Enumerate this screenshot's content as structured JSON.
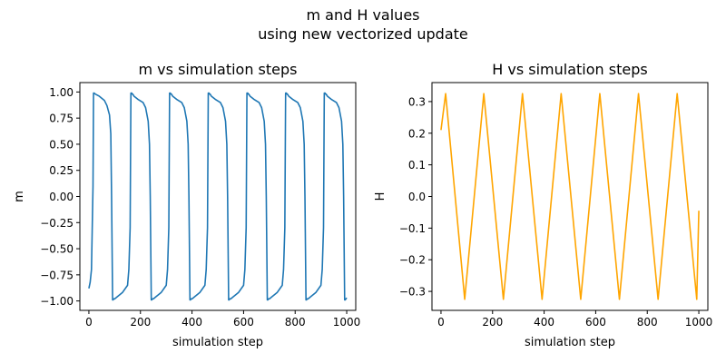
{
  "figure": {
    "suptitle_line1": "m and H values",
    "suptitle_line2": "using new vectorized update"
  },
  "chart_data": [
    {
      "type": "line",
      "title": "m vs simulation steps",
      "xlabel": "simulation step",
      "ylabel": "m",
      "xlim": [
        -35,
        1035
      ],
      "ylim": [
        -1.09,
        1.09
      ],
      "xticks": [
        0,
        200,
        400,
        600,
        800,
        1000
      ],
      "yticks": [
        -1.0,
        -0.75,
        -0.5,
        -0.25,
        0.0,
        0.25,
        0.5,
        0.75,
        1.0
      ],
      "ytick_labels": [
        "−1.00",
        "−0.75",
        "−0.50",
        "−0.25",
        "0.00",
        "0.25",
        "0.50",
        "0.75",
        "1.00"
      ],
      "grid": false,
      "series": [
        {
          "color": "#1f77b4",
          "x": [
            0,
            5,
            10,
            16,
            18,
            20,
            25,
            40,
            60,
            70,
            80,
            85,
            88,
            92,
            94,
            96,
            100,
            110,
            130,
            150,
            155,
            160,
            163,
            166,
            168,
            170,
            175,
            190,
            210,
            220,
            230,
            235,
            238,
            242,
            244,
            246,
            250,
            260,
            280,
            300,
            305,
            310,
            313,
            316,
            318,
            320,
            325,
            340,
            360,
            370,
            380,
            385,
            388,
            392,
            394,
            396,
            400,
            410,
            430,
            450,
            455,
            460,
            463,
            466,
            468,
            470,
            475,
            490,
            510,
            520,
            530,
            535,
            538,
            542,
            544,
            546,
            550,
            560,
            580,
            600,
            605,
            610,
            613,
            616,
            618,
            620,
            625,
            640,
            660,
            670,
            680,
            685,
            688,
            692,
            694,
            696,
            700,
            710,
            730,
            750,
            755,
            760,
            763,
            766,
            768,
            770,
            775,
            790,
            810,
            820,
            830,
            835,
            838,
            842,
            844,
            846,
            850,
            860,
            880,
            900,
            905,
            910,
            913,
            916,
            918,
            920,
            925,
            940,
            960,
            970,
            980,
            985,
            988,
            992,
            994,
            1000
          ],
          "y": [
            -0.88,
            -0.82,
            -0.7,
            0.1,
            0.99,
            0.99,
            0.98,
            0.96,
            0.92,
            0.87,
            0.78,
            0.6,
            0.0,
            -0.99,
            -0.99,
            -0.98,
            -0.98,
            -0.96,
            -0.92,
            -0.85,
            -0.7,
            -0.3,
            0.99,
            0.99,
            0.98,
            0.98,
            0.96,
            0.93,
            0.9,
            0.85,
            0.72,
            0.5,
            0.0,
            -0.99,
            -0.99,
            -0.98,
            -0.98,
            -0.96,
            -0.92,
            -0.85,
            -0.7,
            -0.3,
            0.99,
            0.99,
            0.98,
            0.98,
            0.96,
            0.93,
            0.9,
            0.85,
            0.72,
            0.5,
            0.0,
            -0.99,
            -0.99,
            -0.98,
            -0.98,
            -0.96,
            -0.92,
            -0.85,
            -0.7,
            -0.3,
            0.99,
            0.99,
            0.98,
            0.98,
            0.96,
            0.93,
            0.9,
            0.85,
            0.72,
            0.5,
            0.0,
            -0.99,
            -0.99,
            -0.98,
            -0.98,
            -0.96,
            -0.92,
            -0.85,
            -0.7,
            -0.3,
            0.99,
            0.99,
            0.98,
            0.98,
            0.96,
            0.93,
            0.9,
            0.85,
            0.72,
            0.5,
            0.0,
            -0.99,
            -0.99,
            -0.98,
            -0.98,
            -0.96,
            -0.92,
            -0.85,
            -0.7,
            -0.3,
            0.99,
            0.99,
            0.98,
            0.98,
            0.96,
            0.93,
            0.9,
            0.85,
            0.72,
            0.5,
            0.0,
            -0.99,
            -0.99,
            -0.98,
            -0.98,
            -0.96,
            -0.92,
            -0.85,
            -0.7,
            -0.3,
            0.99,
            0.99,
            0.98,
            0.98,
            0.96,
            0.93,
            0.9,
            0.85,
            0.72,
            0.5,
            0.0,
            -0.99,
            -0.99,
            -0.97
          ]
        }
      ]
    },
    {
      "type": "line",
      "title": "H vs simulation steps",
      "xlabel": "simulation step",
      "ylabel": "H",
      "xlim": [
        -35,
        1035
      ],
      "ylim": [
        -0.36,
        0.36
      ],
      "xticks": [
        0,
        200,
        400,
        600,
        800,
        1000
      ],
      "yticks": [
        -0.3,
        -0.2,
        -0.1,
        0.0,
        0.1,
        0.2,
        0.3
      ],
      "ytick_labels": [
        "−0.3",
        "−0.2",
        "−0.1",
        "0.0",
        "0.1",
        "0.2",
        "0.3"
      ],
      "grid": false,
      "series": [
        {
          "color": "#ffa500",
          "x": [
            0,
            18,
            92,
            166,
            242,
            316,
            392,
            466,
            542,
            616,
            692,
            766,
            842,
            916,
            992,
            1000
          ],
          "y": [
            0.21,
            0.325,
            -0.325,
            0.325,
            -0.325,
            0.325,
            -0.325,
            0.325,
            -0.325,
            0.325,
            -0.325,
            0.325,
            -0.325,
            0.325,
            -0.325,
            -0.045
          ]
        }
      ]
    }
  ]
}
